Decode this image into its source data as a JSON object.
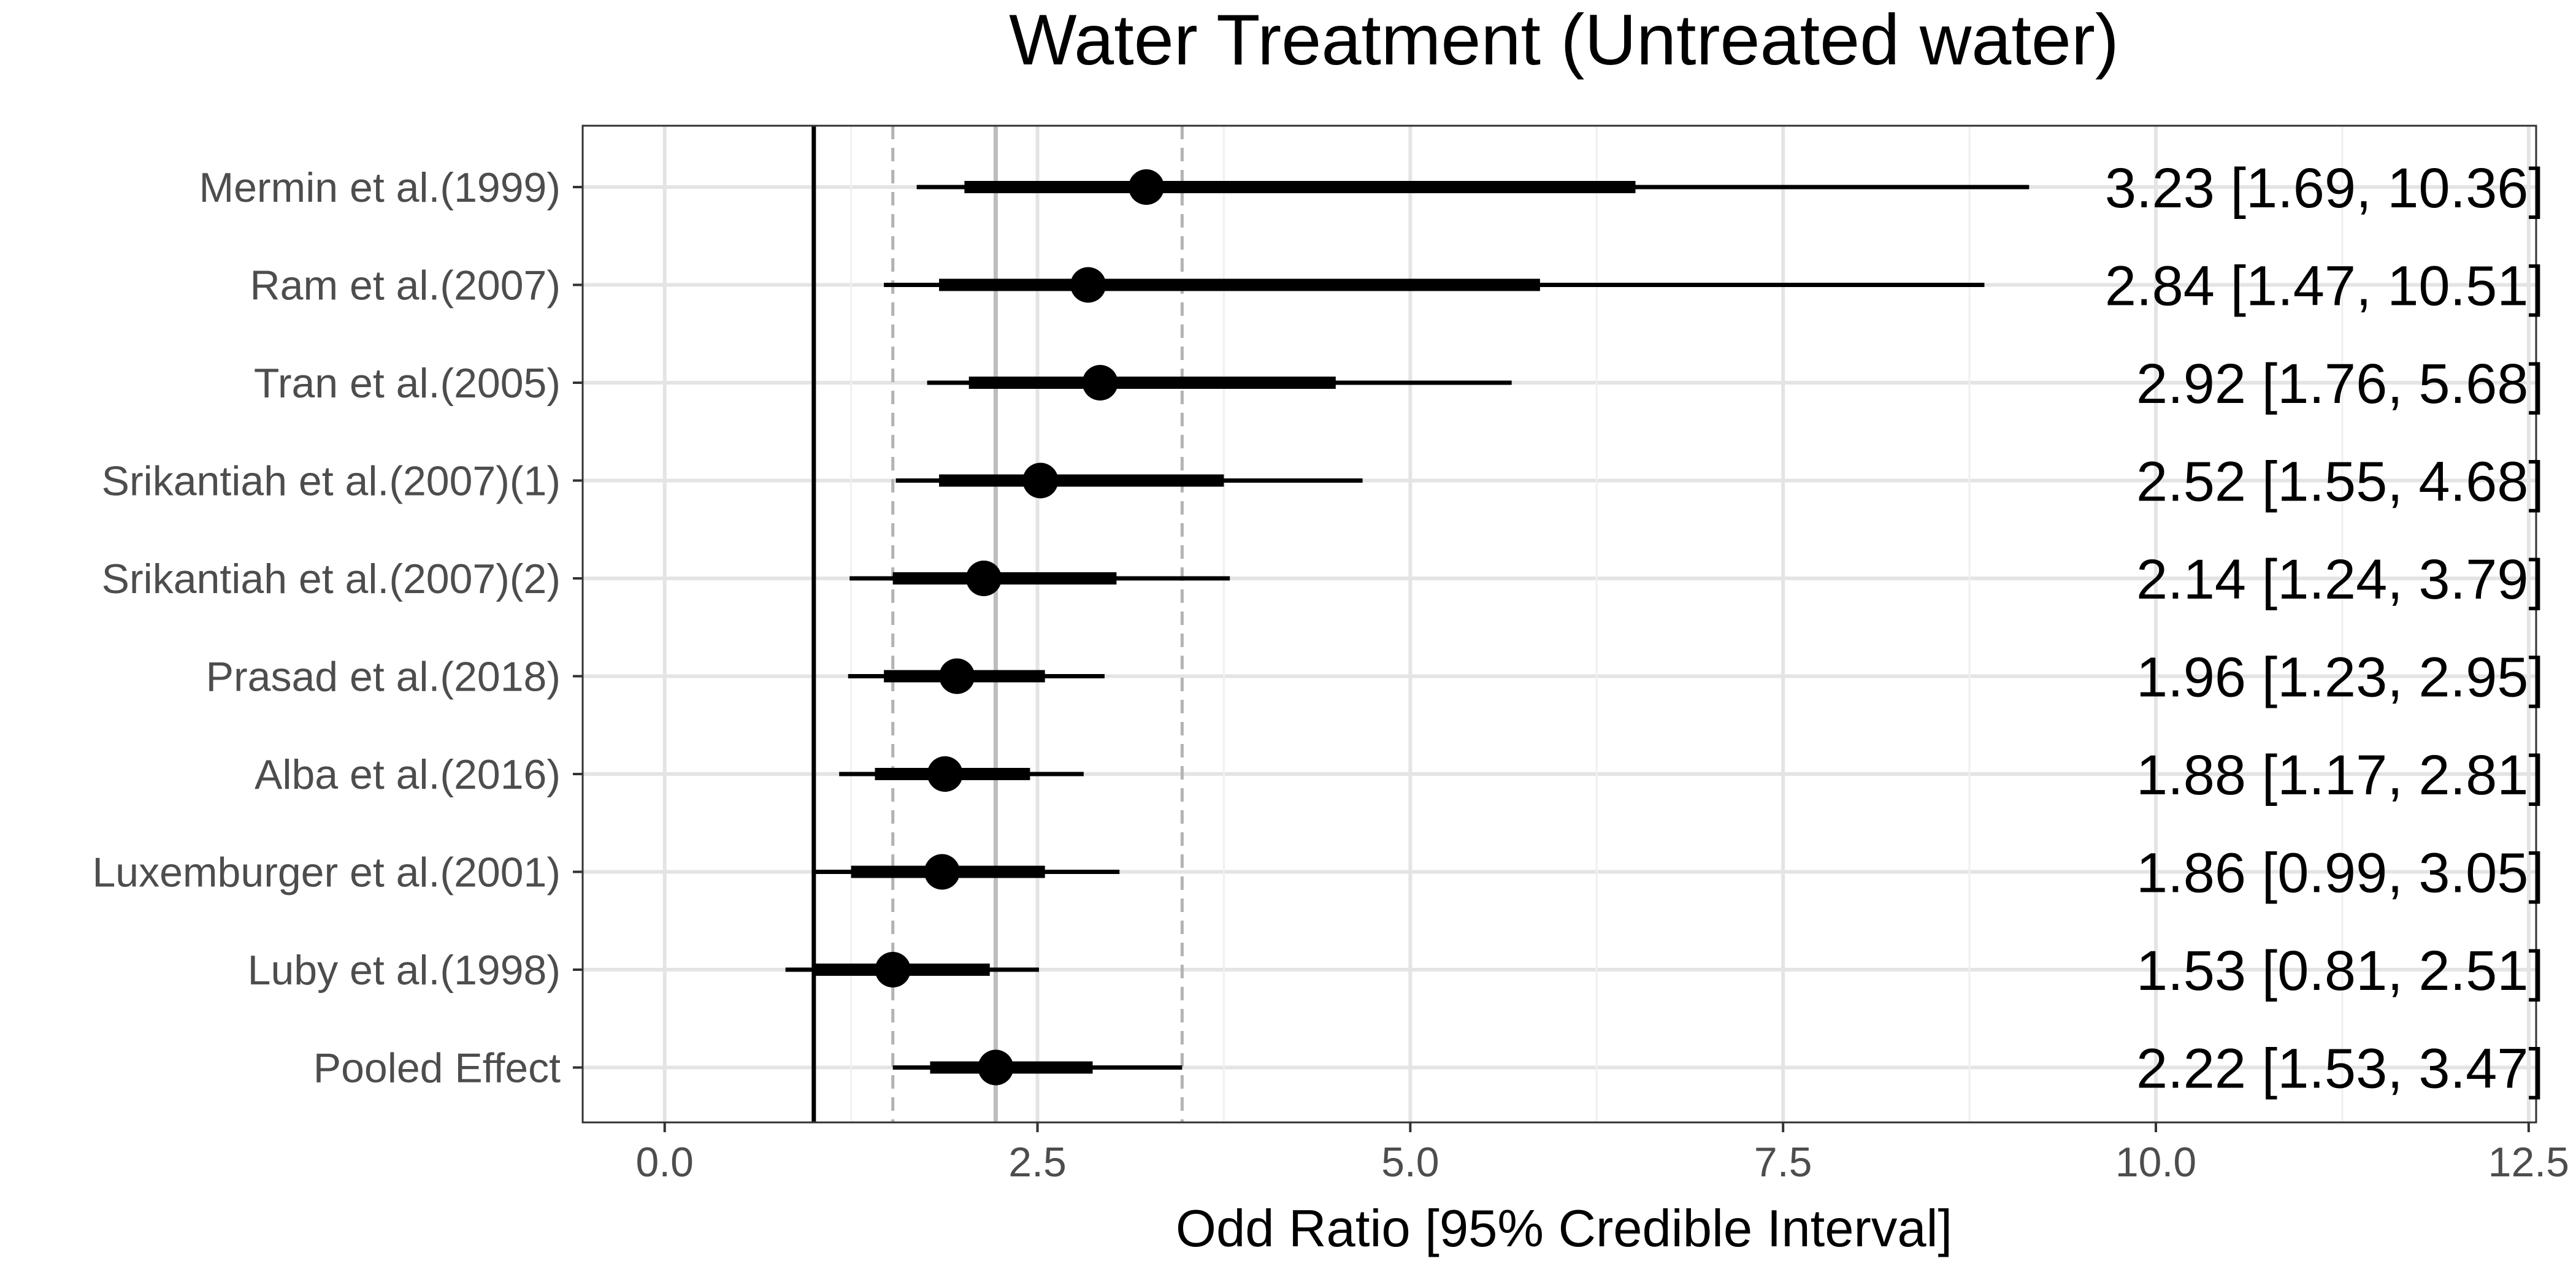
{
  "chart_data": {
    "type": "forest",
    "title": "Water Treatment (Untreated water)",
    "xlabel": "Odd Ratio [95% Credible Interval]",
    "ylabel": "",
    "xlim": [
      -0.55,
      12.55
    ],
    "x_ticks": [
      0.0,
      2.5,
      5.0,
      7.5,
      10.0,
      12.5
    ],
    "x_tick_labels": [
      "0.0",
      "2.5",
      "5.0",
      "7.5",
      "10.0",
      "12.5"
    ],
    "grid": true,
    "reference_line": 1.0,
    "pooled_line": 2.22,
    "pooled_interval_lines": [
      1.53,
      3.47
    ],
    "studies": [
      {
        "name": "Mermin et al.(1999)",
        "estimate": 3.23,
        "lower": 1.69,
        "upper": 10.36,
        "inner_lower": 2.01,
        "inner_upper": 6.51,
        "outer_upper": 9.15,
        "label": "3.23 [1.69, 10.36]"
      },
      {
        "name": "Ram et al.(2007)",
        "estimate": 2.84,
        "lower": 1.47,
        "upper": 10.51,
        "inner_lower": 1.84,
        "inner_upper": 5.87,
        "outer_upper": 8.85,
        "label": "2.84 [1.47, 10.51]"
      },
      {
        "name": "Tran et al.(2005)",
        "estimate": 2.92,
        "lower": 1.76,
        "upper": 5.68,
        "inner_lower": 2.04,
        "inner_upper": 4.5,
        "outer_upper": 5.68,
        "label": "2.92 [1.76, 5.68]"
      },
      {
        "name": "Srikantiah et al.(2007)(1)",
        "estimate": 2.52,
        "lower": 1.55,
        "upper": 4.68,
        "inner_lower": 1.84,
        "inner_upper": 3.75,
        "outer_upper": 4.68,
        "label": "2.52 [1.55, 4.68]"
      },
      {
        "name": "Srikantiah et al.(2007)(2)",
        "estimate": 2.14,
        "lower": 1.24,
        "upper": 3.79,
        "inner_lower": 1.53,
        "inner_upper": 3.03,
        "outer_upper": 3.79,
        "label": "2.14 [1.24, 3.79]"
      },
      {
        "name": "Prasad et al.(2018)",
        "estimate": 1.96,
        "lower": 1.23,
        "upper": 2.95,
        "inner_lower": 1.47,
        "inner_upper": 2.55,
        "outer_upper": 2.95,
        "label": "1.96 [1.23, 2.95]"
      },
      {
        "name": "Alba et al.(2016)",
        "estimate": 1.88,
        "lower": 1.17,
        "upper": 2.81,
        "inner_lower": 1.41,
        "inner_upper": 2.45,
        "outer_upper": 2.81,
        "label": "1.88 [1.17, 2.81]"
      },
      {
        "name": "Luxemburger et al.(2001)",
        "estimate": 1.86,
        "lower": 0.99,
        "upper": 3.05,
        "inner_lower": 1.25,
        "inner_upper": 2.55,
        "outer_upper": 3.05,
        "label": "1.86 [0.99, 3.05]"
      },
      {
        "name": "Luby et al.(1998)",
        "estimate": 1.53,
        "lower": 0.81,
        "upper": 2.51,
        "inner_lower": 1.0,
        "inner_upper": 2.18,
        "outer_upper": 2.51,
        "label": "1.53 [0.81, 2.51]"
      },
      {
        "name": "Pooled Effect",
        "estimate": 2.22,
        "lower": 1.53,
        "upper": 3.47,
        "inner_lower": 1.78,
        "inner_upper": 2.87,
        "outer_upper": 3.47,
        "label": "2.22 [1.53, 3.47]"
      }
    ]
  }
}
